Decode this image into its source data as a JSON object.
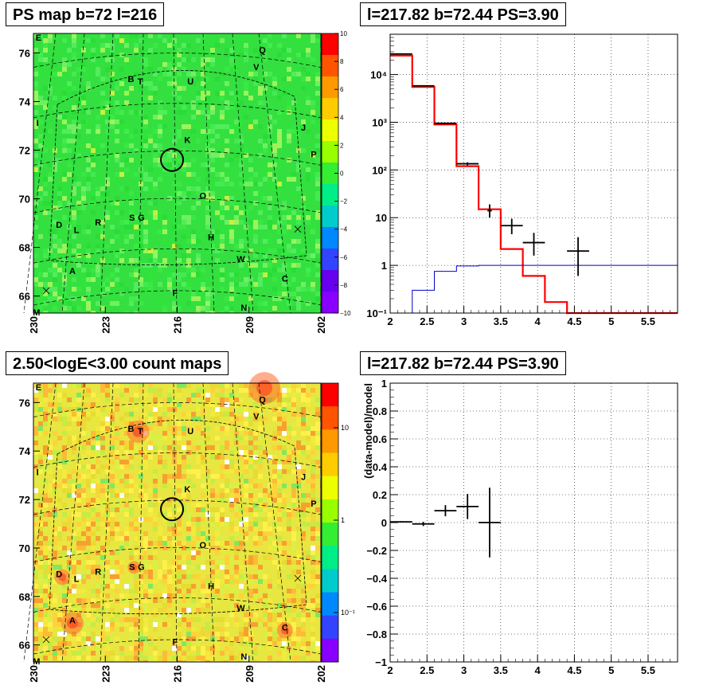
{
  "panels": {
    "psmap": {
      "title": "PS map b=72 l=216",
      "y_ticks": [
        "66",
        "68",
        "70",
        "72",
        "74",
        "76"
      ],
      "x_ticks": [
        "230",
        "223",
        "216",
        "209",
        "202"
      ],
      "colorbar_ticks": [
        "10",
        "8",
        "6",
        "4",
        "2",
        "0",
        "−2",
        "−4",
        "−6",
        "−8",
        "−10"
      ],
      "colorbar_colors": [
        "#7a00e6",
        "#3355ff",
        "#00b3ff",
        "#00e6a0",
        "#33e633",
        "#ccff33",
        "#ffe600",
        "#ff9900",
        "#ff3300"
      ]
    },
    "spectrum": {
      "title": "l=217.82 b=72.44 PS=3.90"
    },
    "countmap": {
      "title": "2.50<logE<3.00 count maps",
      "y_ticks": [
        "66",
        "68",
        "70",
        "72",
        "74",
        "76"
      ],
      "x_ticks": [
        "230",
        "223",
        "216",
        "209",
        "202"
      ],
      "colorbar_ticks": [
        "10",
        "1",
        "10⁻¹"
      ]
    },
    "residual": {
      "title": "l=217.82 b=72.44 PS=3.90"
    }
  },
  "source_labels": [
    {
      "panel": "psmap",
      "text": "E",
      "lon": 229.5,
      "lat": 76.5
    },
    {
      "panel": "psmap",
      "text": "Q",
      "lon": 207.7,
      "lat": 76.0
    },
    {
      "panel": "psmap",
      "text": "V",
      "lon": 208.3,
      "lat": 75.3
    },
    {
      "panel": "psmap",
      "text": "B",
      "lon": 220.5,
      "lat": 74.8
    },
    {
      "panel": "psmap",
      "text": "T",
      "lon": 219.6,
      "lat": 74.7
    },
    {
      "panel": "psmap",
      "text": "U",
      "lon": 214.7,
      "lat": 74.7
    },
    {
      "panel": "psmap",
      "text": "I",
      "lon": 229.6,
      "lat": 73.0
    },
    {
      "panel": "psmap",
      "text": "J",
      "lon": 203.7,
      "lat": 72.8
    },
    {
      "panel": "psmap",
      "text": "K",
      "lon": 215.0,
      "lat": 72.3
    },
    {
      "panel": "psmap",
      "text": "P",
      "lon": 202.7,
      "lat": 71.7
    },
    {
      "panel": "psmap",
      "text": "O",
      "lon": 213.5,
      "lat": 70.0
    },
    {
      "panel": "psmap",
      "text": "S",
      "lon": 220.4,
      "lat": 69.1
    },
    {
      "panel": "psmap",
      "text": "G",
      "lon": 219.5,
      "lat": 69.1
    },
    {
      "panel": "psmap",
      "text": "R",
      "lon": 223.7,
      "lat": 68.9
    },
    {
      "panel": "psmap",
      "text": "D",
      "lon": 227.5,
      "lat": 68.8
    },
    {
      "panel": "psmap",
      "text": "L",
      "lon": 225.8,
      "lat": 68.6
    },
    {
      "panel": "psmap",
      "text": "H",
      "lon": 212.7,
      "lat": 68.3
    },
    {
      "panel": "psmap",
      "text": "W",
      "lon": 209.8,
      "lat": 67.4
    },
    {
      "panel": "psmap",
      "text": "A",
      "lon": 226.2,
      "lat": 66.9
    },
    {
      "panel": "psmap",
      "text": "C",
      "lon": 205.5,
      "lat": 66.6
    },
    {
      "panel": "psmap",
      "text": "F",
      "lon": 216.2,
      "lat": 66.0
    },
    {
      "panel": "psmap",
      "text": "N",
      "lon": 209.5,
      "lat": 65.4
    },
    {
      "panel": "psmap",
      "text": "M",
      "lon": 229.7,
      "lat": 65.2
    }
  ],
  "chart_data": [
    {
      "type": "heatmap",
      "panel": "psmap",
      "title": "PS map b=72 l=216",
      "xlim": [
        230,
        202
      ],
      "ylim": [
        65.3,
        76.8
      ],
      "zlim": [
        -10,
        10
      ],
      "circle": {
        "lon": 216.5,
        "lat": 71.6
      }
    },
    {
      "type": "line",
      "panel": "spectrum",
      "title": "l=217.82 b=72.44 PS=3.90",
      "xlim": [
        2,
        5.9
      ],
      "ylim": [
        0.1,
        70000
      ],
      "yscale": "log",
      "x_ticks": [
        "2",
        "2.5",
        "3",
        "3.5",
        "4",
        "4.5",
        "5",
        "5.5"
      ],
      "y_ticks": [
        {
          "v": 0.1,
          "label": "10⁻¹"
        },
        {
          "v": 1,
          "label": "1"
        },
        {
          "v": 10,
          "label": "10"
        },
        {
          "v": 100,
          "label": "10²"
        },
        {
          "v": 1000,
          "label": "10³"
        },
        {
          "v": 10000,
          "label": "10⁴"
        }
      ],
      "series": [
        {
          "color": "#ff0000",
          "step_edges": [
            2.0,
            2.3,
            2.6,
            2.9,
            3.2,
            3.5,
            3.8,
            4.1,
            4.4,
            4.7,
            5.0,
            5.3,
            5.6,
            5.9
          ],
          "values": [
            25000,
            5500,
            900,
            120,
            15,
            2.2,
            0.6,
            0.17,
            0.1,
            0.1,
            0.1,
            0.1,
            0.1
          ]
        },
        {
          "color": "#0000cc",
          "step_edges": [
            2.0,
            2.3,
            2.6,
            2.9,
            3.2,
            3.5,
            3.8,
            4.1,
            4.4,
            4.7,
            5.0,
            5.3,
            5.6,
            5.9
          ],
          "values": [
            0.1,
            0.3,
            0.75,
            0.97,
            1.0,
            1.0,
            1.0,
            1.0,
            1.0,
            1.0,
            1.0,
            1.0,
            1.0
          ]
        },
        {
          "color": "#000000",
          "points": [
            {
              "x": 2.15,
              "y": 27000,
              "xerr": 0.15
            },
            {
              "x": 2.45,
              "y": 5800,
              "xerr": 0.15
            },
            {
              "x": 2.75,
              "y": 950,
              "xerr": 0.15
            },
            {
              "x": 3.05,
              "y": 135,
              "xerr": 0.15,
              "ylo": 125,
              "yhi": 145
            },
            {
              "x": 3.35,
              "y": 14,
              "xerr": 0.03,
              "ylo": 10,
              "yhi": 19
            },
            {
              "x": 3.65,
              "y": 6.8,
              "xerr": 0.15,
              "ylo": 4.5,
              "yhi": 9.5
            },
            {
              "x": 3.95,
              "y": 3.0,
              "xerr": 0.15,
              "ylo": 1.6,
              "yhi": 4.8
            },
            {
              "x": 4.55,
              "y": 2.0,
              "xerr": 0.15,
              "ylo": 0.6,
              "yhi": 3.9
            }
          ]
        }
      ]
    },
    {
      "type": "heatmap",
      "panel": "countmap",
      "title": "2.50<logE<3.00 count maps",
      "xlim": [
        230,
        202
      ],
      "ylim": [
        65.3,
        76.8
      ],
      "zscale": "log",
      "circle": {
        "lon": 216.5,
        "lat": 71.6
      }
    },
    {
      "type": "scatter",
      "panel": "residual",
      "title": "l=217.82 b=72.44 PS=3.90",
      "ylabel": "(data-model)/model",
      "xlim": [
        2,
        5.9
      ],
      "ylim": [
        -1,
        1
      ],
      "x_ticks": [
        "2",
        "2.5",
        "3",
        "3.5",
        "4",
        "4.5",
        "5",
        "5.5"
      ],
      "y_ticks": [
        "−1",
        "−0.8",
        "−0.6",
        "−0.4",
        "−0.2",
        "0",
        "0.2",
        "0.4",
        "0.6",
        "0.8",
        "1"
      ],
      "points": [
        {
          "x": 2.15,
          "y": 0.005,
          "xerr": 0.15,
          "yerr": 0.005
        },
        {
          "x": 2.45,
          "y": -0.01,
          "xerr": 0.15,
          "yerr": 0.015
        },
        {
          "x": 2.75,
          "y": 0.085,
          "xerr": 0.15,
          "yerr": 0.04
        },
        {
          "x": 3.05,
          "y": 0.115,
          "xerr": 0.15,
          "yerr": 0.09
        },
        {
          "x": 3.35,
          "y": 0.0,
          "xerr": 0.15,
          "yerr": 0.25
        }
      ]
    }
  ]
}
